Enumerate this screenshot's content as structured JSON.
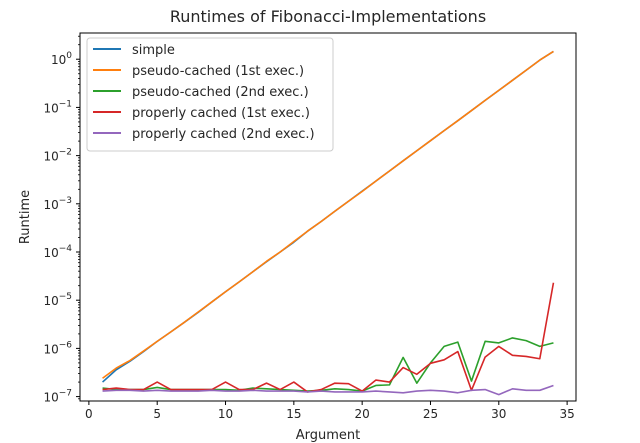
{
  "chart_data": {
    "type": "line",
    "title": "Runtimes of Fibonacci-Implementations",
    "xlabel": "Argument",
    "ylabel": "Runtime",
    "xlim": [
      -0.65,
      35.65
    ],
    "ylim": [
      8.1e-08,
      3.5
    ],
    "yscale": "log",
    "xticks": [
      0,
      5,
      10,
      15,
      20,
      25,
      30,
      35
    ],
    "xtick_labels": [
      "0",
      "5",
      "10",
      "15",
      "20",
      "25",
      "30",
      "35"
    ],
    "yticks": [
      1e-07,
      1e-06,
      1e-05,
      0.0001,
      0.001,
      0.01,
      0.1,
      1
    ],
    "ytick_base": "10",
    "ytick_exponents": [
      "−7",
      "−6",
      "−5",
      "−4",
      "−3",
      "−2",
      "−1",
      "0"
    ],
    "grid": false,
    "legend_position": "top-left",
    "x": [
      1,
      2,
      3,
      4,
      5,
      6,
      7,
      8,
      9,
      10,
      11,
      12,
      13,
      14,
      15,
      16,
      17,
      18,
      19,
      20,
      21,
      22,
      23,
      24,
      25,
      26,
      27,
      28,
      29,
      30,
      31,
      32,
      33,
      34
    ],
    "series": [
      {
        "name": "simple",
        "color": "#1f77b4",
        "values": [
          2e-07,
          3.6e-07,
          5.4e-07,
          8.6e-07,
          1.4e-06,
          2.2e-06,
          3.5e-06,
          5.6e-06,
          9.2e-06,
          1.5e-05,
          2.4e-05,
          3.9e-05,
          6.3e-05,
          0.0001,
          0.00016,
          0.00027,
          0.00043,
          0.0007,
          0.00113,
          0.00183,
          0.00296,
          0.0048,
          0.0078,
          0.0126,
          0.0204,
          0.033,
          0.053,
          0.086,
          0.14,
          0.226,
          0.365,
          0.59,
          0.96,
          1.45
        ]
      },
      {
        "name": "pseudo-cached (1st exec.)",
        "color": "#ff7f0e",
        "values": [
          2.4e-07,
          3.9e-07,
          5.6e-07,
          8.8e-07,
          1.4e-06,
          2.2e-06,
          3.5e-06,
          5.7e-06,
          9.2e-06,
          1.5e-05,
          2.4e-05,
          3.9e-05,
          6.4e-05,
          0.0001,
          0.000165,
          0.00027,
          0.00043,
          0.0007,
          0.00113,
          0.0018,
          0.00296,
          0.0048,
          0.0078,
          0.0126,
          0.0204,
          0.033,
          0.053,
          0.086,
          0.14,
          0.226,
          0.365,
          0.59,
          0.96,
          1.45
        ]
      },
      {
        "name": "pseudo-cached (2nd exec.)",
        "color": "#2ca02c",
        "values": [
          1.5e-07,
          1.4e-07,
          1.4e-07,
          1.4e-07,
          1.55e-07,
          1.4e-07,
          1.4e-07,
          1.4e-07,
          1.4e-07,
          1.4e-07,
          1.35e-07,
          1.5e-07,
          1.45e-07,
          1.4e-07,
          1.35e-07,
          1.3e-07,
          1.35e-07,
          1.45e-07,
          1.4e-07,
          1.3e-07,
          1.7e-07,
          1.75e-07,
          6.5e-07,
          1.9e-07,
          5e-07,
          1.1e-06,
          1.35e-06,
          2.1e-07,
          1.4e-06,
          1.3e-06,
          1.65e-06,
          1.45e-06,
          1.1e-06,
          1.3e-06
        ]
      },
      {
        "name": "properly cached (1st exec.)",
        "color": "#d62728",
        "values": [
          1.4e-07,
          1.5e-07,
          1.4e-07,
          1.4e-07,
          2e-07,
          1.4e-07,
          1.4e-07,
          1.4e-07,
          1.4e-07,
          2e-07,
          1.4e-07,
          1.4e-07,
          1.9e-07,
          1.4e-07,
          2e-07,
          1.25e-07,
          1.4e-07,
          1.9e-07,
          1.85e-07,
          1.3e-07,
          2.2e-07,
          2e-07,
          4e-07,
          2.9e-07,
          4.9e-07,
          5.8e-07,
          8.6e-07,
          1.35e-07,
          6.6e-07,
          1.1e-06,
          7.2e-07,
          6.8e-07,
          6.1e-07,
          2.3e-05
        ]
      },
      {
        "name": "properly cached (2nd exec.)",
        "color": "#9467bd",
        "values": [
          1.3e-07,
          1.35e-07,
          1.35e-07,
          1.3e-07,
          1.35e-07,
          1.3e-07,
          1.3e-07,
          1.3e-07,
          1.35e-07,
          1.3e-07,
          1.3e-07,
          1.35e-07,
          1.3e-07,
          1.3e-07,
          1.3e-07,
          1.25e-07,
          1.3e-07,
          1.25e-07,
          1.25e-07,
          1.25e-07,
          1.3e-07,
          1.25e-07,
          1.2e-07,
          1.3e-07,
          1.35e-07,
          1.3e-07,
          1.2e-07,
          1.35e-07,
          1.4e-07,
          1.1e-07,
          1.45e-07,
          1.35e-07,
          1.35e-07,
          1.7e-07
        ]
      }
    ]
  }
}
